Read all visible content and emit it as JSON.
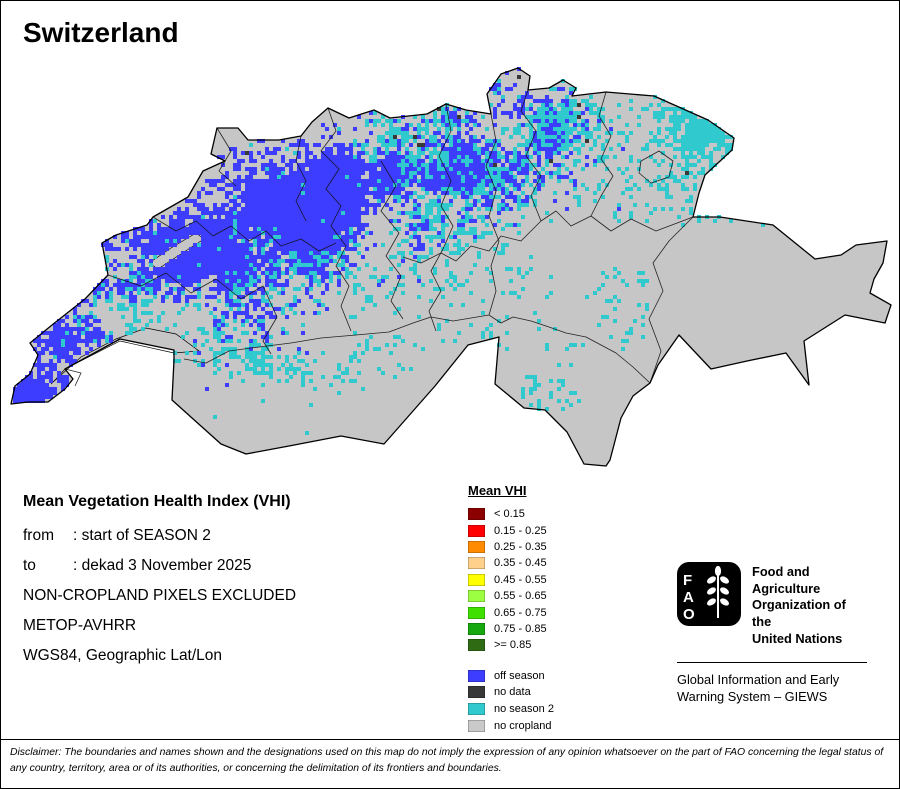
{
  "title": "Switzerland",
  "info": {
    "heading": "Mean Vegetation Health Index (VHI)",
    "from_label": "from",
    "from_value": ": start of SEASON 2",
    "to_label": "to",
    "to_value": ": dekad 3 November 2025",
    "line1": "NON-CROPLAND PIXELS EXCLUDED",
    "line2": "METOP-AVHRR",
    "line3": "WGS84, Geographic Lat/Lon"
  },
  "legend": {
    "title": "Mean VHI",
    "classes": [
      {
        "label": "< 0.15",
        "color": "#8b0000"
      },
      {
        "label": "0.15 - 0.25",
        "color": "#ff0000"
      },
      {
        "label": "0.25 - 0.35",
        "color": "#ff8c00"
      },
      {
        "label": "0.35 - 0.45",
        "color": "#ffd08c"
      },
      {
        "label": "0.45 - 0.55",
        "color": "#ffff00"
      },
      {
        "label": "0.55 - 0.65",
        "color": "#9dff42"
      },
      {
        "label": "0.65 - 0.75",
        "color": "#3fe000"
      },
      {
        "label": "0.75 - 0.85",
        "color": "#16a80e"
      },
      {
        "label": ">= 0.85",
        "color": "#2e6b13"
      }
    ],
    "categories": [
      {
        "label": "off season",
        "color": "#3d3dff"
      },
      {
        "label": "no data",
        "color": "#383838"
      },
      {
        "label": "no season 2",
        "color": "#30c9cd"
      },
      {
        "label": "no cropland",
        "color": "#c9c9c9"
      }
    ]
  },
  "map": {
    "country": "Switzerland",
    "fill_no_cropland": "#c6c6c6",
    "pixel_off_season": "#3d3dff",
    "pixel_no_season2": "#30c9cd",
    "pixel_no_data": "#383838",
    "boundary_color": "#000000"
  },
  "footer": {
    "logo_text": "FAO",
    "org_lines": [
      "Food and Agriculture",
      "Organization of the",
      "United Nations"
    ],
    "giews_lines": [
      "Global Information and Early",
      "Warning System – GIEWS"
    ],
    "disclaimer": "Disclaimer: The boundaries and names shown and the designations used on this map do not imply the expression of any opinion whatsoever on the part of FAO concerning the legal status of any country, territory, area or of its authorities, or concerning the delimitation of its frontiers and boundaries."
  }
}
